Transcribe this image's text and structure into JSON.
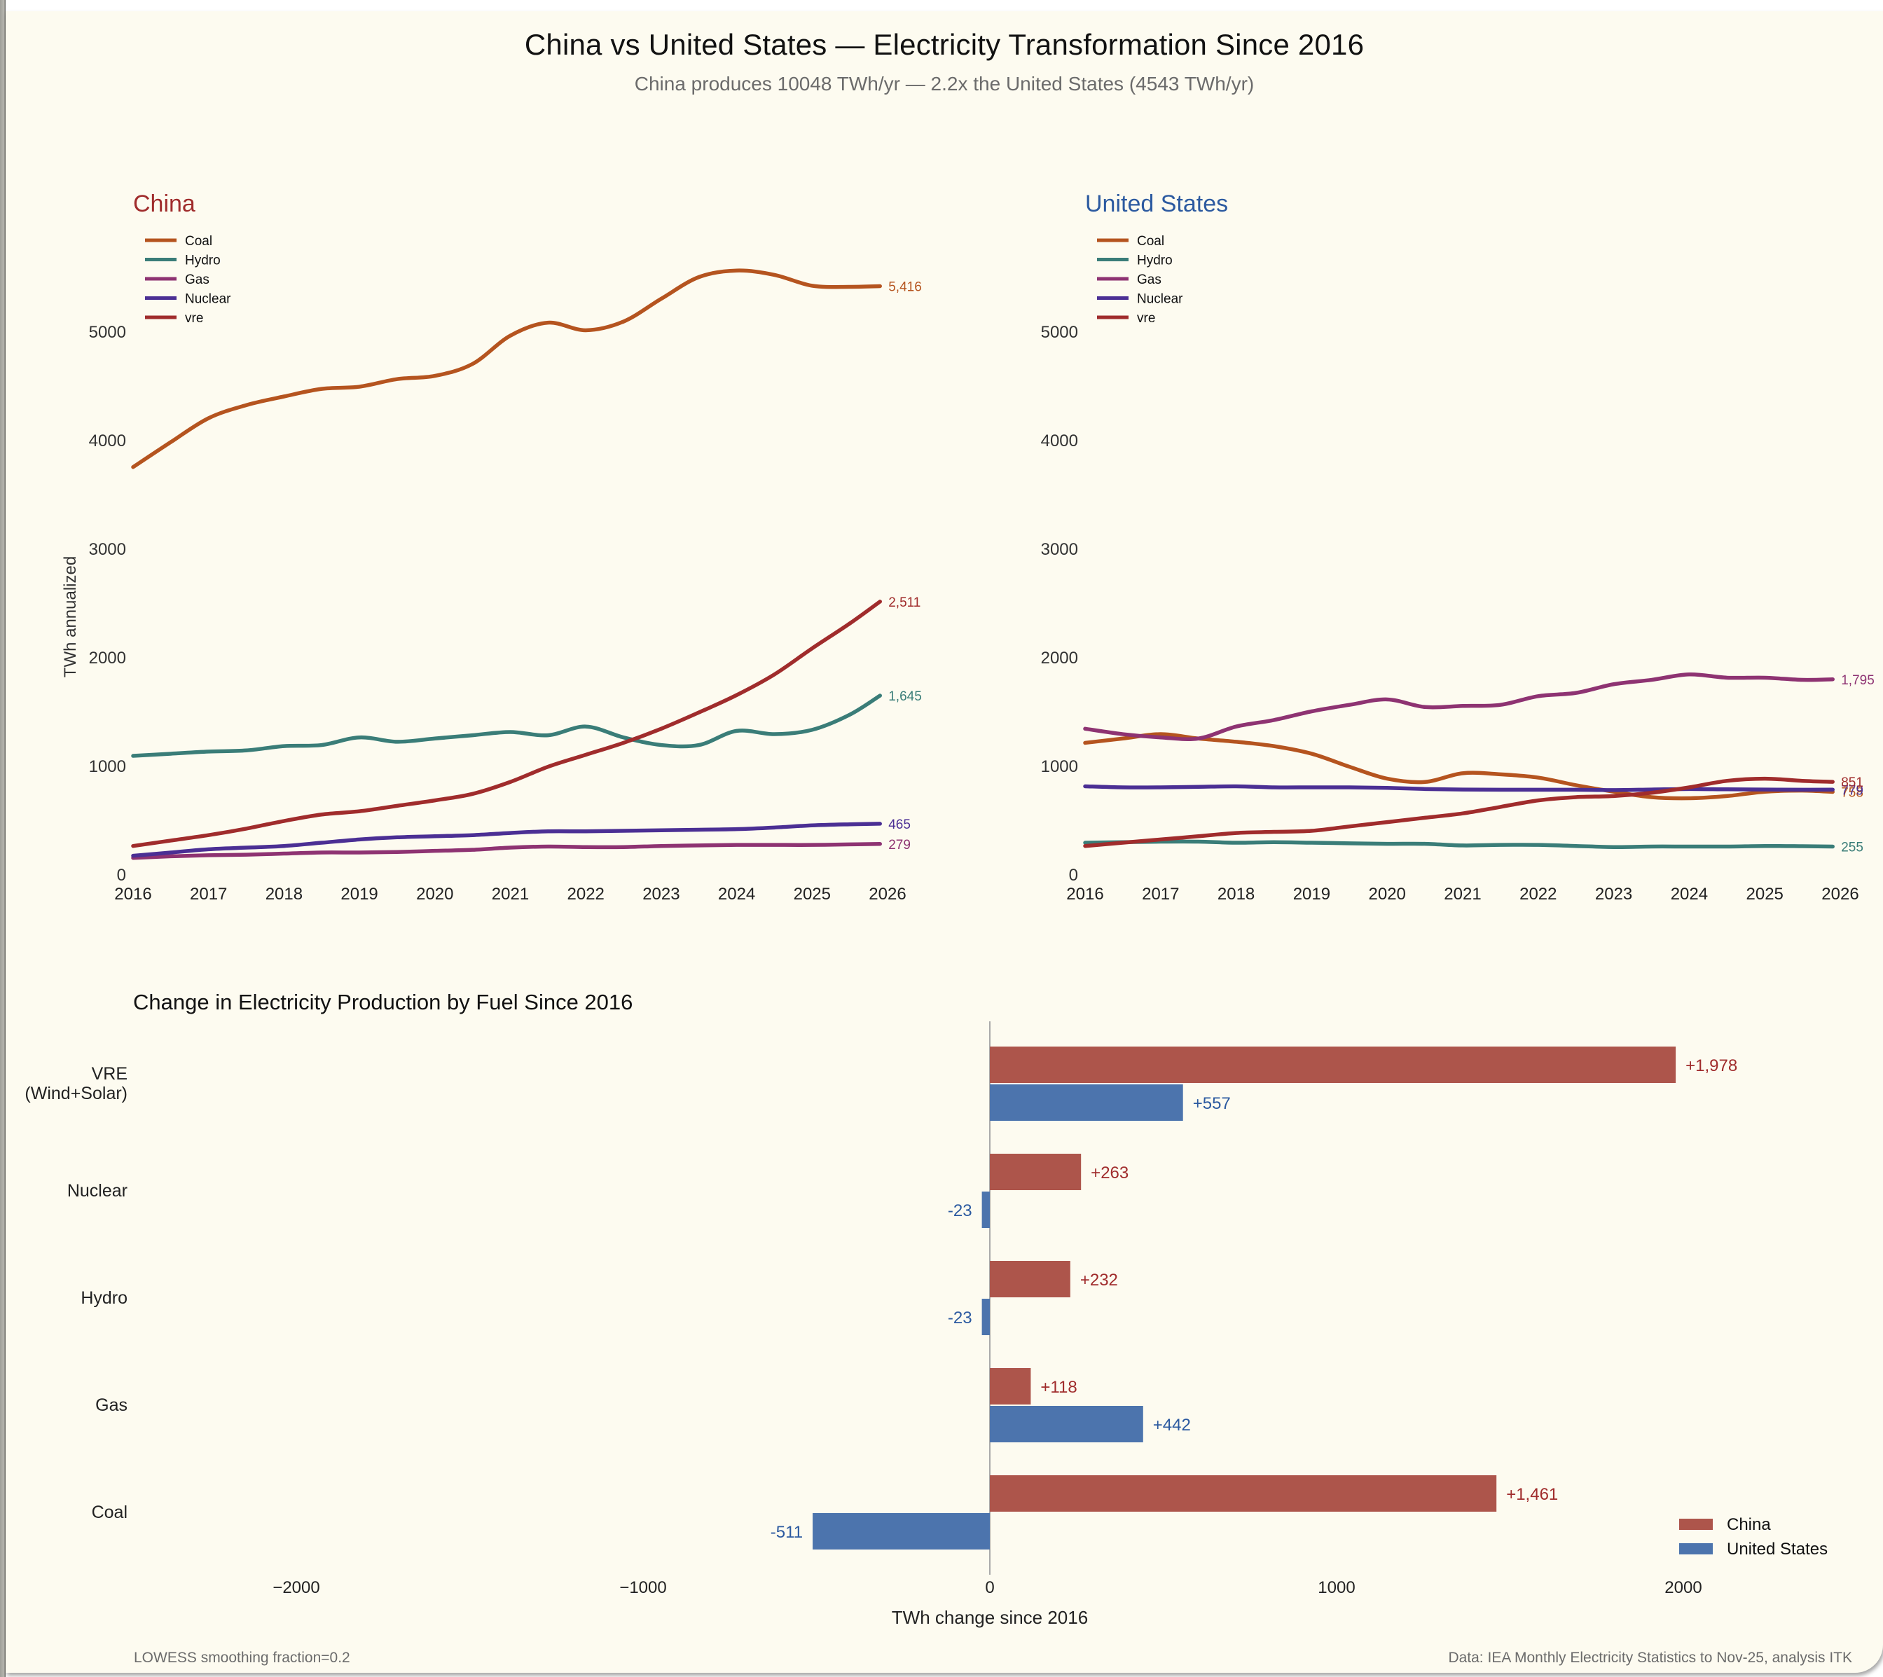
{
  "header": {
    "title": "China vs United States — Electricity Transformation Since 2016",
    "subtitle": "China produces 10048 TWh/yr — 2.2x the United States (4543 TWh/yr)"
  },
  "footer": {
    "left_note": "LOWESS smoothing fraction=0.2",
    "source": "Data: IEA Monthly Electricity Statistics to Nov-25, analysis ITK"
  },
  "colors": {
    "coal": "#b5541f",
    "hydro": "#3a7d78",
    "gas": "#8e3372",
    "nuclear": "#4b2f94",
    "vre": "#a02c2c",
    "china_title": "#a02c2c",
    "us_title": "#2c5aa0",
    "china_bar": "#ad554b",
    "us_bar": "#4c74ad",
    "china_label": "#a02c2c",
    "us_label": "#2c5aa0"
  },
  "chart_data": [
    {
      "type": "line",
      "title": "China",
      "xlabel": "",
      "ylabel": "TWh annualized",
      "xlim": [
        2016,
        2026
      ],
      "ylim": [
        0,
        5700
      ],
      "xticks": [
        "2016",
        "2017",
        "2018",
        "2019",
        "2020",
        "2021",
        "2022",
        "2023",
        "2024",
        "2025",
        "2026"
      ],
      "yticks": [
        "0",
        "1000",
        "2000",
        "3000",
        "4000",
        "5000"
      ],
      "grid": false,
      "legend": "top-left",
      "x": [
        2016.0,
        2016.5,
        2017.0,
        2017.5,
        2018.0,
        2018.5,
        2019.0,
        2019.5,
        2020.0,
        2020.5,
        2021.0,
        2021.5,
        2022.0,
        2022.5,
        2023.0,
        2023.5,
        2024.0,
        2024.5,
        2025.0,
        2025.5,
        2025.9
      ],
      "series": [
        {
          "name": "Coal",
          "key": "coal",
          "end_label": "5,416",
          "values": [
            3750,
            3980,
            4200,
            4320,
            4400,
            4470,
            4490,
            4560,
            4590,
            4700,
            4960,
            5080,
            5010,
            5090,
            5300,
            5500,
            5560,
            5520,
            5420,
            5410,
            5416
          ]
        },
        {
          "name": "Hydro",
          "key": "hydro",
          "end_label": "1,645",
          "values": [
            1090,
            1110,
            1130,
            1140,
            1180,
            1190,
            1260,
            1220,
            1250,
            1280,
            1310,
            1280,
            1360,
            1260,
            1190,
            1190,
            1320,
            1290,
            1330,
            1470,
            1645
          ]
        },
        {
          "name": "Gas",
          "key": "gas",
          "end_label": "279",
          "values": [
            150,
            165,
            175,
            180,
            190,
            200,
            200,
            205,
            215,
            225,
            245,
            255,
            250,
            250,
            260,
            265,
            270,
            270,
            270,
            275,
            279
          ]
        },
        {
          "name": "Nuclear",
          "key": "nuclear",
          "end_label": "465",
          "values": [
            170,
            200,
            230,
            245,
            260,
            290,
            320,
            340,
            350,
            360,
            380,
            395,
            395,
            400,
            405,
            410,
            415,
            430,
            450,
            460,
            465
          ]
        },
        {
          "name": "vre",
          "key": "vre",
          "end_label": "2,511",
          "values": [
            260,
            310,
            360,
            420,
            490,
            550,
            580,
            630,
            680,
            740,
            850,
            990,
            1100,
            1210,
            1340,
            1490,
            1650,
            1840,
            2080,
            2310,
            2511
          ]
        }
      ]
    },
    {
      "type": "line",
      "title": "United States",
      "xlabel": "",
      "ylabel": "",
      "xlim": [
        2016,
        2026
      ],
      "ylim": [
        0,
        5700
      ],
      "xticks": [
        "2016",
        "2017",
        "2018",
        "2019",
        "2020",
        "2021",
        "2022",
        "2023",
        "2024",
        "2025",
        "2026"
      ],
      "yticks": [
        "0",
        "1000",
        "2000",
        "3000",
        "4000",
        "5000"
      ],
      "grid": false,
      "legend": "top-left",
      "x": [
        2016.0,
        2016.5,
        2017.0,
        2017.5,
        2018.0,
        2018.5,
        2019.0,
        2019.5,
        2020.0,
        2020.5,
        2021.0,
        2021.5,
        2022.0,
        2022.5,
        2023.0,
        2023.5,
        2024.0,
        2024.5,
        2025.0,
        2025.5,
        2025.9
      ],
      "series": [
        {
          "name": "Coal",
          "key": "coal",
          "end_label": "758",
          "values": [
            1210,
            1250,
            1290,
            1250,
            1220,
            1180,
            1110,
            990,
            880,
            850,
            930,
            920,
            890,
            820,
            760,
            710,
            700,
            720,
            760,
            770,
            758
          ]
        },
        {
          "name": "Hydro",
          "key": "hydro",
          "end_label": "255",
          "values": [
            290,
            295,
            300,
            300,
            290,
            295,
            290,
            285,
            280,
            280,
            265,
            270,
            270,
            260,
            250,
            255,
            255,
            255,
            260,
            258,
            255
          ]
        },
        {
          "name": "Gas",
          "key": "gas",
          "end_label": "1,795",
          "values": [
            1340,
            1290,
            1260,
            1250,
            1360,
            1420,
            1500,
            1560,
            1610,
            1540,
            1550,
            1560,
            1640,
            1670,
            1750,
            1790,
            1840,
            1810,
            1810,
            1790,
            1795
          ]
        },
        {
          "name": "Nuclear",
          "key": "nuclear",
          "end_label": "779",
          "values": [
            810,
            800,
            800,
            805,
            810,
            800,
            800,
            800,
            795,
            785,
            780,
            778,
            778,
            778,
            775,
            780,
            785,
            782,
            780,
            778,
            779
          ]
        },
        {
          "name": "vre",
          "key": "vre",
          "end_label": "851",
          "values": [
            260,
            290,
            320,
            350,
            380,
            390,
            400,
            440,
            480,
            520,
            560,
            620,
            680,
            710,
            720,
            750,
            800,
            860,
            880,
            860,
            851
          ]
        }
      ]
    },
    {
      "type": "bar",
      "orientation": "horizontal",
      "title": "Change in Electricity Production by Fuel Since 2016",
      "xlabel": "TWh change since 2016",
      "ylabel": "",
      "xlim": [
        -2500,
        2500
      ],
      "xticks": [
        "−2000",
        "−1000",
        "0",
        "1000",
        "2000"
      ],
      "xtick_values": [
        -2000,
        -1000,
        0,
        1000,
        2000
      ],
      "legend": "bottom-right",
      "categories": [
        "VRE\n(Wind+Solar)",
        "Nuclear",
        "Hydro",
        "Gas",
        "Coal"
      ],
      "series": [
        {
          "name": "China",
          "key": "china_bar",
          "values": [
            1978,
            263,
            232,
            118,
            1461
          ],
          "labels": [
            "+1,978",
            "+263",
            "+232",
            "+118",
            "+1,461"
          ]
        },
        {
          "name": "United States",
          "key": "us_bar",
          "values": [
            557,
            -23,
            -23,
            442,
            -511
          ],
          "labels": [
            "+557",
            "-23",
            "-23",
            "+442",
            "-511"
          ]
        }
      ]
    }
  ]
}
